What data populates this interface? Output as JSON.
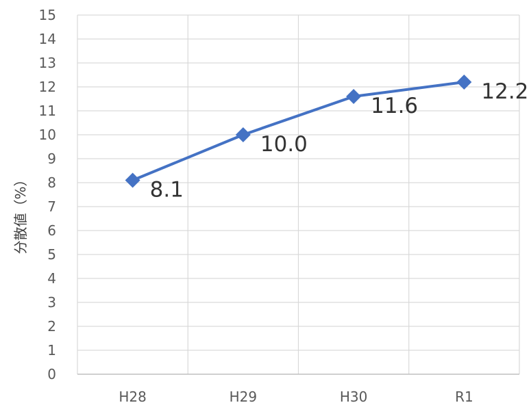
{
  "chart_data": {
    "type": "line",
    "title": "",
    "xlabel": "",
    "ylabel": "分散値（%）",
    "categories": [
      "H28",
      "H29",
      "H30",
      "R1"
    ],
    "ylim": [
      0,
      15
    ],
    "yticks": [
      0,
      1,
      2,
      3,
      4,
      5,
      6,
      7,
      8,
      9,
      10,
      11,
      12,
      13,
      14,
      15
    ],
    "series": [
      {
        "values": [
          8.1,
          10.0,
          11.6,
          12.2
        ],
        "labels": [
          "8.1",
          "10.0",
          "11.6",
          "12.2"
        ],
        "color": "#4472c4",
        "marker": "diamond"
      }
    ],
    "grid": true,
    "legend": "none"
  }
}
